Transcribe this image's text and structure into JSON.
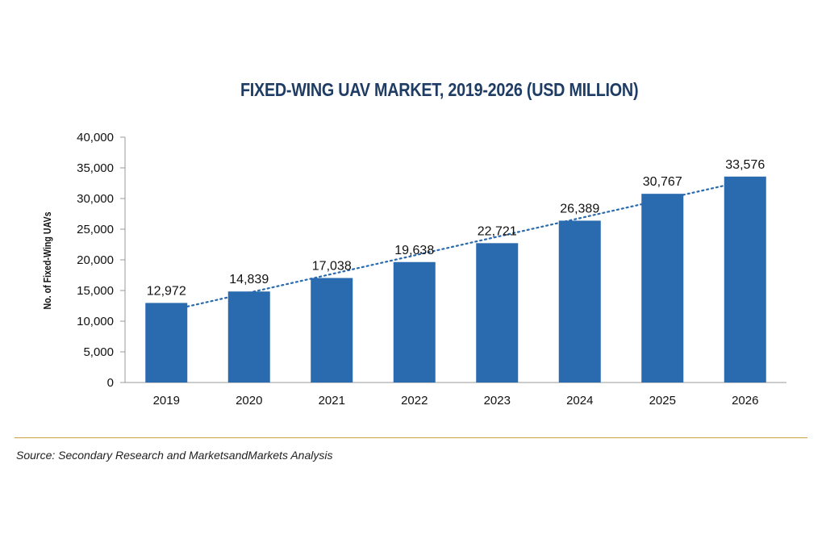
{
  "chart_data": {
    "type": "bar",
    "title": "FIXED-WING UAV MARKET, 2019-2026 (USD MILLION)",
    "ylabel": "No. of Fixed-Wing UAVs",
    "xlabel": "",
    "categories": [
      "2019",
      "2020",
      "2021",
      "2022",
      "2023",
      "2024",
      "2025",
      "2026"
    ],
    "values": [
      12972,
      14839,
      17038,
      19638,
      22721,
      26389,
      30767,
      33576
    ],
    "data_labels": [
      "12,972",
      "14,839",
      "17,038",
      "19,638",
      "22,721",
      "26,389",
      "30,767",
      "33,576"
    ],
    "ylim": [
      0,
      40000
    ],
    "yticks": [
      0,
      5000,
      10000,
      15000,
      20000,
      25000,
      30000,
      35000,
      40000
    ],
    "ytick_labels": [
      "0",
      "5,000",
      "10,000",
      "15,000",
      "20,000",
      "25,000",
      "30,000",
      "35,000",
      "40,000"
    ],
    "trendline": "linear (dotted)",
    "grid": false,
    "legend": "none",
    "colors": {
      "bar": "#2a6aae",
      "trendline": "#2a6aae",
      "title": "#1f3d64",
      "axis": "#9a9a9a",
      "divider": "#c8a23c"
    }
  },
  "source": "Source: Secondary Research and MarketsandMarkets Analysis"
}
